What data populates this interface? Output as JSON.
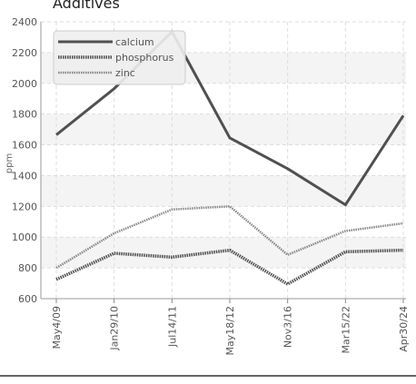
{
  "chart_data": {
    "type": "line",
    "title": "Additives",
    "ylabel": "ppm",
    "xlabel": "",
    "categories": [
      "May4/09",
      "Jan29/10",
      "Jul14/11",
      "May18/12",
      "Nov3/16",
      "Mar15/22",
      "Apr30/24"
    ],
    "ylim": [
      600,
      2400
    ],
    "yticks": [
      600,
      800,
      1000,
      1200,
      1400,
      1600,
      1800,
      2000,
      2200,
      2400
    ],
    "grid": true,
    "legend_position": "top-left",
    "series": [
      {
        "name": "calcium",
        "color": "#505050",
        "style": "solid",
        "values": [
          1665,
          1965,
          2335,
          1645,
          1445,
          1210,
          1790
        ]
      },
      {
        "name": "phosphorus",
        "color": "#505050",
        "style": "dotted",
        "values": [
          725,
          895,
          870,
          915,
          695,
          905,
          915
        ]
      },
      {
        "name": "zinc",
        "color": "#888888",
        "style": "dotted",
        "values": [
          800,
          1025,
          1180,
          1200,
          885,
          1040,
          1090
        ]
      }
    ]
  }
}
